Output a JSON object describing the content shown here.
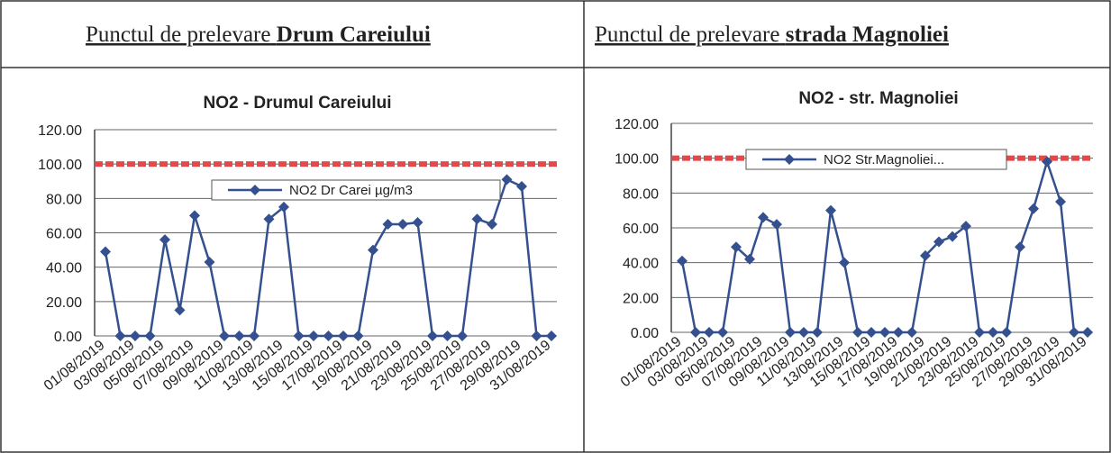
{
  "headers": [
    {
      "prefix": "Punctul de prelevare",
      "place": "Drum Careiului"
    },
    {
      "prefix": "Punctul de prelevare",
      "place": "strada Magnoliei"
    }
  ],
  "chart_data": [
    {
      "type": "line",
      "title": "NO2 - Drumul Careiului",
      "categories": [
        "01/08/2019",
        null,
        "03/08/2019",
        null,
        "05/08/2019",
        null,
        "07/08/2019",
        null,
        "09/08/2019",
        null,
        "11/08/2019",
        null,
        "13/08/2019",
        null,
        "15/08/2019",
        null,
        "17/08/2019",
        null,
        "19/08/2019",
        null,
        "21/08/2019",
        null,
        "23/08/2019",
        null,
        "25/08/2019",
        null,
        "27/08/2019",
        null,
        "29/08/2019",
        null,
        "31/08/2019"
      ],
      "series": [
        {
          "name": "NO2 Dr Carei  µg/m3",
          "color": "#34508f",
          "values": [
            49,
            0,
            0,
            0,
            56,
            15,
            70,
            43,
            0,
            0,
            0,
            68,
            75,
            0,
            0,
            0,
            0,
            0,
            50,
            65,
            65,
            66,
            0,
            0,
            0,
            68,
            65,
            91,
            87,
            0,
            0
          ]
        }
      ],
      "threshold": 100,
      "threshold_color": "#e8474a",
      "ylim": [
        0,
        120
      ],
      "yticks": [
        {
          "value": 0,
          "label": "0.00"
        },
        {
          "value": 20,
          "label": "20.00"
        },
        {
          "value": 40,
          "label": "40.00"
        },
        {
          "value": 60,
          "label": "60.00"
        },
        {
          "value": 80,
          "label": "80.00"
        },
        {
          "value": 100,
          "label": "100.00"
        },
        {
          "value": 120,
          "label": "120.00"
        }
      ],
      "grid": true
    },
    {
      "type": "line",
      "title": "NO2 - str. Magnoliei",
      "categories": [
        "01/08/2019",
        null,
        "03/08/2019",
        null,
        "05/08/2019",
        null,
        "07/08/2019",
        null,
        "09/08/2019",
        null,
        "11/08/2019",
        null,
        "13/08/2019",
        null,
        "15/08/2019",
        null,
        "17/08/2019",
        null,
        "19/08/2019",
        null,
        "21/08/2019",
        null,
        "23/08/2019",
        null,
        "25/08/2019",
        null,
        "27/08/2019",
        null,
        "29/08/2019",
        null,
        "31/08/2019"
      ],
      "series": [
        {
          "name": "NO2 Str.Magnoliei...",
          "color": "#34508f",
          "values": [
            41,
            0,
            0,
            0,
            49,
            42,
            66,
            62,
            0,
            0,
            0,
            70,
            40,
            0,
            0,
            0,
            0,
            0,
            44,
            52,
            55,
            61,
            0,
            0,
            0,
            49,
            71,
            98,
            75,
            0,
            0
          ]
        }
      ],
      "threshold": 100,
      "threshold_color": "#e8474a",
      "ylim": [
        0,
        120
      ],
      "yticks": [
        {
          "value": 0,
          "label": "0.00"
        },
        {
          "value": 20,
          "label": "20.00"
        },
        {
          "value": 40,
          "label": "40.00"
        },
        {
          "value": 60,
          "label": "60.00"
        },
        {
          "value": 80,
          "label": "80.00"
        },
        {
          "value": 100,
          "label": "100.00"
        },
        {
          "value": 120,
          "label": "120.00"
        }
      ],
      "grid": true
    }
  ]
}
